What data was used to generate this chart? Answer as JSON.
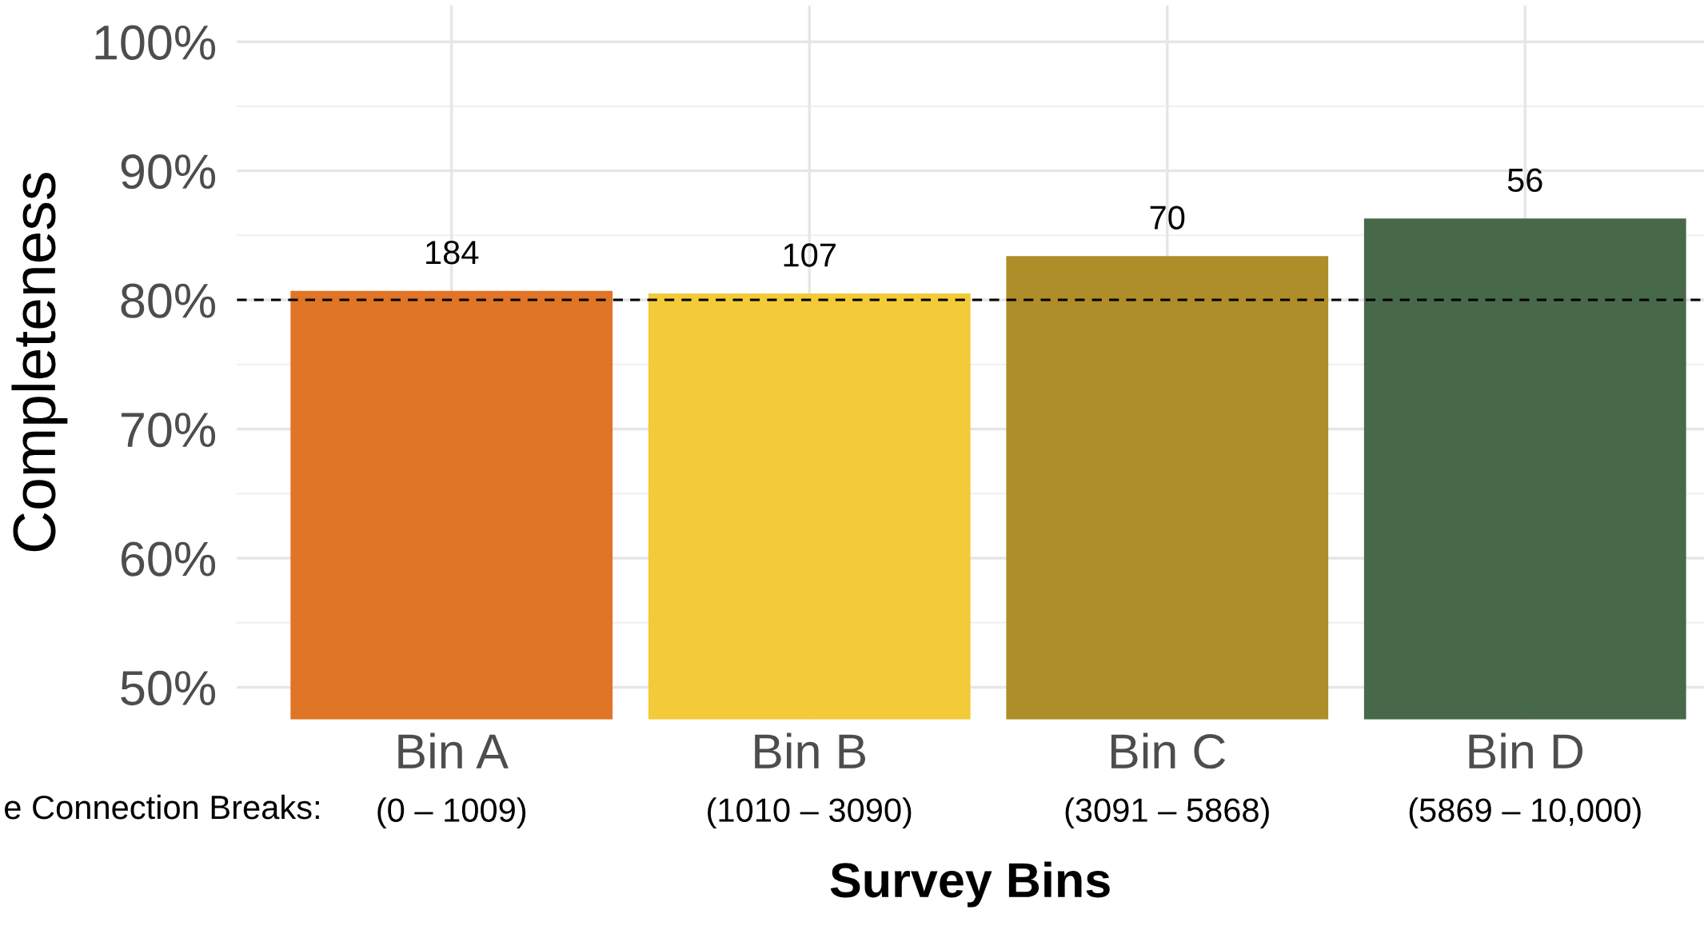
{
  "chart_data": {
    "type": "bar",
    "xlabel": "Survey Bins",
    "ylabel": "Completeness",
    "categories": [
      "Bin A",
      "Bin B",
      "Bin C",
      "Bin D"
    ],
    "values": [
      80.7,
      80.5,
      83.4,
      86.3
    ],
    "colors": [
      "#e07527",
      "#f3ca37",
      "#ad8e28",
      "#48684a"
    ],
    "ylim": [
      47.5,
      102.8
    ],
    "yticks": [
      {
        "value": 50,
        "label": "50%"
      },
      {
        "value": 60,
        "label": "60%"
      },
      {
        "value": 70,
        "label": "70%"
      },
      {
        "value": 80,
        "label": "80%"
      },
      {
        "value": 90,
        "label": "90%"
      },
      {
        "value": 100,
        "label": "100%"
      }
    ],
    "ref_lines": [
      {
        "axis": "y",
        "value": 80,
        "label": null,
        "color": "#000000",
        "line_style": "dashed"
      }
    ],
    "grid": true,
    "annotations": [
      "e Connection Breaks:",
      "(0 – 1009)",
      "(1010 – 3090)",
      "(3091 – 5868)",
      "(5869 – 10,000)",
      {
        "text": "184",
        "x": "Bin A",
        "y": 80.7
      },
      {
        "text": "107",
        "x": "Bin B",
        "y": 80.5
      },
      {
        "text": "70",
        "x": "Bin C",
        "y": 83.4
      },
      {
        "text": "56",
        "x": "Bin D",
        "y": 86.3
      }
    ]
  }
}
